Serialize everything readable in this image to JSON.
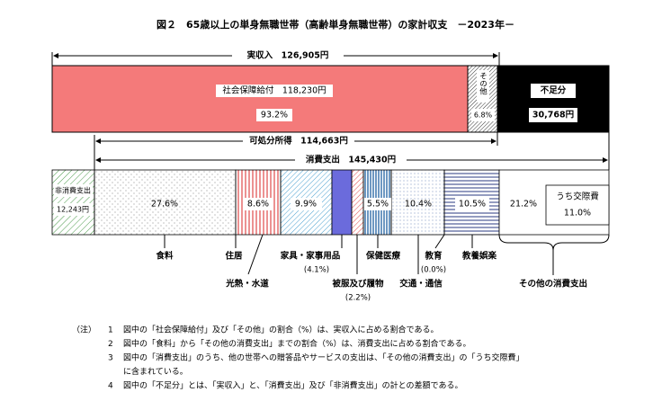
{
  "title": "図２　65歳以上の単身無職世帯（高齢単身無職世帯）の家計収支　－2023年－",
  "income": {
    "label": "実収入　126,905円",
    "social_security": {
      "label": "社会保障給付　118,230円",
      "share": "93.2%"
    },
    "other": {
      "label": "その他",
      "share": "6.8%"
    },
    "shortfall": {
      "label": "不足分",
      "amount": "30,768円"
    }
  },
  "disposable_income": {
    "label": "可処分所得　114,663円"
  },
  "non_consumption": {
    "label": "非消費支出",
    "amount": "12,243円"
  },
  "consumption": {
    "label": "消費支出　145,430円",
    "segments": [
      {
        "label": "食料",
        "share": "27.6%"
      },
      {
        "label": "住居",
        "share": "8.6%"
      },
      {
        "label": "光熱・水道",
        "share": "9.9%"
      },
      {
        "label": "家具・家事用品",
        "share": "(4.1%)"
      },
      {
        "label": "被服及び履物",
        "share": "(2.2%)"
      },
      {
        "label": "保健医療",
        "share": "5.5%"
      },
      {
        "label": "交通・通信",
        "share": "10.4%"
      },
      {
        "label": "教育",
        "share": "(0.0%)"
      },
      {
        "label": "教養娯楽",
        "share": "10.5%"
      },
      {
        "label": "その他の消費支出",
        "share": "21.2%",
        "sub_label": "うち交際費",
        "sub_share": "11.0%"
      }
    ]
  },
  "notes": {
    "marker": "（注）",
    "items": [
      {
        "number": "1",
        "lines": [
          "図中の「社会保障給付」及び「その他」の割合（%）は、実収入に占める割合である。"
        ]
      },
      {
        "number": "2",
        "lines": [
          "図中の「食料」から「その他の消費支出」までの割合（%）は、消費支出に占める割合である。"
        ]
      },
      {
        "number": "3",
        "lines": [
          "図中の「消費支出」のうち、他の世帯への贈答品やサービスの支出は、「その他の消費支出」の「うち交際費」",
          "に含まれている。"
        ]
      },
      {
        "number": "4",
        "lines": [
          "図中の「不足分」とは、「実収入」と、「消費支出」及び「非消費支出」の計との差額である。"
        ]
      }
    ]
  }
}
